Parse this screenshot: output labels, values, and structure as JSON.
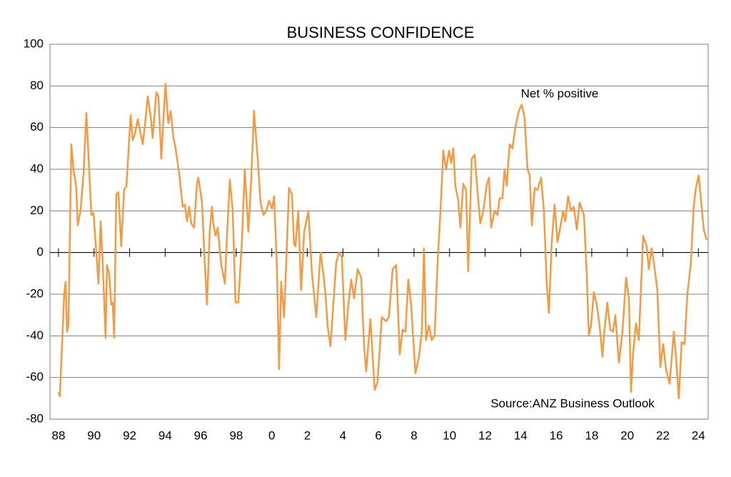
{
  "chart_data": {
    "type": "line",
    "title": "BUSINESS CONFIDENCE",
    "annotations": [
      "Net % positive",
      "Source:ANZ Business Outlook"
    ],
    "series": [
      {
        "name": "Net % positive",
        "color": "#f39a45",
        "x": [
          1988.0,
          1988.08,
          1988.32,
          1988.4,
          1988.48,
          1988.56,
          1988.72,
          1988.84,
          1989.0,
          1989.08,
          1989.24,
          1989.41,
          1989.57,
          1989.85,
          1989.97,
          1990.25,
          1990.37,
          1990.49,
          1990.65,
          1990.73,
          1990.85,
          1990.97,
          1991.05,
          1991.13,
          1991.25,
          1991.37,
          1991.53,
          1991.69,
          1991.82,
          1992.06,
          1992.18,
          1992.3,
          1992.46,
          1992.62,
          1992.74,
          1992.91,
          1993.02,
          1993.18,
          1993.3,
          1993.5,
          1993.62,
          1993.78,
          1993.9,
          1994.02,
          1994.18,
          1994.31,
          1994.47,
          1994.59,
          1994.79,
          1994.99,
          1995.11,
          1995.23,
          1995.35,
          1995.47,
          1995.63,
          1995.79,
          1995.87,
          1996.07,
          1996.23,
          1996.35,
          1996.51,
          1996.63,
          1996.71,
          1996.84,
          1996.96,
          1997.16,
          1997.36,
          1997.48,
          1997.64,
          1997.8,
          1997.96,
          1998.12,
          1998.32,
          1998.48,
          1998.68,
          1998.84,
          1999.0,
          1999.2,
          1999.37,
          1999.53,
          1999.69,
          1999.85,
          2000.01,
          2000.13,
          2000.29,
          2000.41,
          2000.53,
          2000.69,
          2000.81,
          2000.97,
          2001.13,
          2001.25,
          2001.33,
          2001.49,
          2001.65,
          2001.82,
          2002.06,
          2002.26,
          2002.5,
          2002.74,
          2002.9,
          2003.02,
          2003.14,
          2003.3,
          2003.46,
          2003.62,
          2003.78,
          2003.94,
          2004.14,
          2004.31,
          2004.47,
          2004.63,
          2004.83,
          2005.03,
          2005.19,
          2005.31,
          2005.55,
          2005.79,
          2005.95,
          2006.19,
          2006.43,
          2006.59,
          2006.8,
          2007.0,
          2007.2,
          2007.36,
          2007.52,
          2007.68,
          2007.84,
          2008.08,
          2008.28,
          2008.44,
          2008.56,
          2008.68,
          2008.84,
          2009.0,
          2009.16,
          2009.33,
          2009.49,
          2009.65,
          2009.81,
          2009.97,
          2010.09,
          2010.21,
          2010.33,
          2010.49,
          2010.61,
          2010.77,
          2010.93,
          2011.05,
          2011.25,
          2011.41,
          2011.57,
          2011.73,
          2011.9,
          2012.1,
          2012.22,
          2012.34,
          2012.54,
          2012.7,
          2012.82,
          2012.98,
          2013.1,
          2013.22,
          2013.38,
          2013.54,
          2013.7,
          2013.9,
          2014.06,
          2014.22,
          2014.39,
          2014.51,
          2014.63,
          2014.79,
          2014.95,
          2015.15,
          2015.31,
          2015.47,
          2015.59,
          2015.75,
          2015.91,
          2016.07,
          2016.19,
          2016.39,
          2016.51,
          2016.67,
          2016.83,
          2016.99,
          2017.16,
          2017.32,
          2017.56,
          2017.72,
          2017.84,
          2017.96,
          2018.12,
          2018.28,
          2018.44,
          2018.6,
          2018.72,
          2018.88,
          2019.04,
          2019.2,
          2019.33,
          2019.53,
          2019.73,
          2019.93,
          2020.09,
          2020.21,
          2020.33,
          2020.49,
          2020.65,
          2020.89,
          2021.09,
          2021.21,
          2021.37,
          2021.53,
          2021.69,
          2021.86,
          2022.02,
          2022.18,
          2022.38,
          2022.62,
          2022.74,
          2022.9,
          2023.06,
          2023.22,
          2023.38,
          2023.58,
          2023.74,
          2023.86,
          2024.02,
          2024.18,
          2024.3,
          2024.47
        ],
        "values": [
          -67,
          -69,
          -20,
          -14,
          -38,
          -35,
          52,
          40,
          31,
          13,
          20,
          38,
          67,
          18,
          19,
          -15,
          15,
          -5,
          -41,
          -6,
          -10,
          -25,
          -24,
          -41,
          28,
          29,
          3,
          30,
          32,
          66,
          54,
          57,
          64,
          57,
          52,
          65,
          75,
          66,
          55,
          77,
          75,
          45,
          64,
          81,
          62,
          68,
          55,
          50,
          38,
          22,
          23,
          15,
          22,
          14,
          12,
          33,
          36,
          24,
          -5,
          -25,
          10,
          22,
          14,
          8,
          12,
          -6,
          -15,
          8,
          35,
          20,
          -24,
          -24,
          6,
          40,
          10,
          35,
          68,
          46,
          24,
          18,
          20,
          25,
          21,
          27,
          -8,
          -56,
          -14,
          -31,
          -5,
          31,
          28,
          4,
          3,
          20,
          -18,
          10,
          20,
          -10,
          -31,
          0,
          -10,
          -20,
          -35,
          -45,
          -25,
          -5,
          0,
          -2,
          -42,
          -25,
          -13,
          -22,
          -8,
          -12,
          -45,
          -57,
          -32,
          -66,
          -62,
          -31,
          -33,
          -31,
          -8,
          -6,
          -49,
          -37,
          -38,
          -13,
          -25,
          -58,
          -50,
          -38,
          2,
          -42,
          -35,
          -42,
          -40,
          -5,
          20,
          49,
          40,
          49,
          43,
          50,
          32,
          25,
          12,
          33,
          30,
          -9,
          45,
          47,
          30,
          14,
          20,
          33,
          36,
          12,
          20,
          18,
          26,
          26,
          40,
          32,
          52,
          50,
          60,
          68,
          71,
          65,
          40,
          37,
          13,
          31,
          30,
          36,
          20,
          -15,
          -29,
          5,
          23,
          5,
          10,
          20,
          15,
          27,
          20,
          22,
          11,
          24,
          18,
          -10,
          -40,
          -35,
          -19,
          -25,
          -35,
          -50,
          -37,
          -24,
          -37,
          -38,
          -30,
          -53,
          -38,
          -12,
          -22,
          -67,
          -48,
          -34,
          -42,
          8,
          3,
          -8,
          2,
          -7,
          -18,
          -55,
          -44,
          -56,
          -63,
          -38,
          -50,
          -70,
          -43,
          -44,
          -20,
          -5,
          22,
          31,
          37,
          22,
          11,
          6
        ]
      }
    ],
    "xlim": [
      1987.52,
      2024.55
    ],
    "ylim": [
      -80,
      100
    ],
    "xticks": [
      {
        "value": 1988,
        "label": "88"
      },
      {
        "value": 1990,
        "label": "90"
      },
      {
        "value": 1992,
        "label": "92"
      },
      {
        "value": 1994,
        "label": "94"
      },
      {
        "value": 1996,
        "label": "96"
      },
      {
        "value": 1998,
        "label": "98"
      },
      {
        "value": 2000,
        "label": "0"
      },
      {
        "value": 2002,
        "label": "2"
      },
      {
        "value": 2004,
        "label": "4"
      },
      {
        "value": 2006,
        "label": "6"
      },
      {
        "value": 2008,
        "label": "8"
      },
      {
        "value": 2010,
        "label": "10"
      },
      {
        "value": 2012,
        "label": "12"
      },
      {
        "value": 2014,
        "label": "14"
      },
      {
        "value": 2016,
        "label": "16"
      },
      {
        "value": 2018,
        "label": "18"
      },
      {
        "value": 2020,
        "label": "20"
      },
      {
        "value": 2022,
        "label": "22"
      },
      {
        "value": 2024,
        "label": "24"
      }
    ],
    "yticks": [
      -80,
      -60,
      -40,
      -20,
      0,
      20,
      40,
      60,
      80,
      100
    ],
    "grid": true
  }
}
